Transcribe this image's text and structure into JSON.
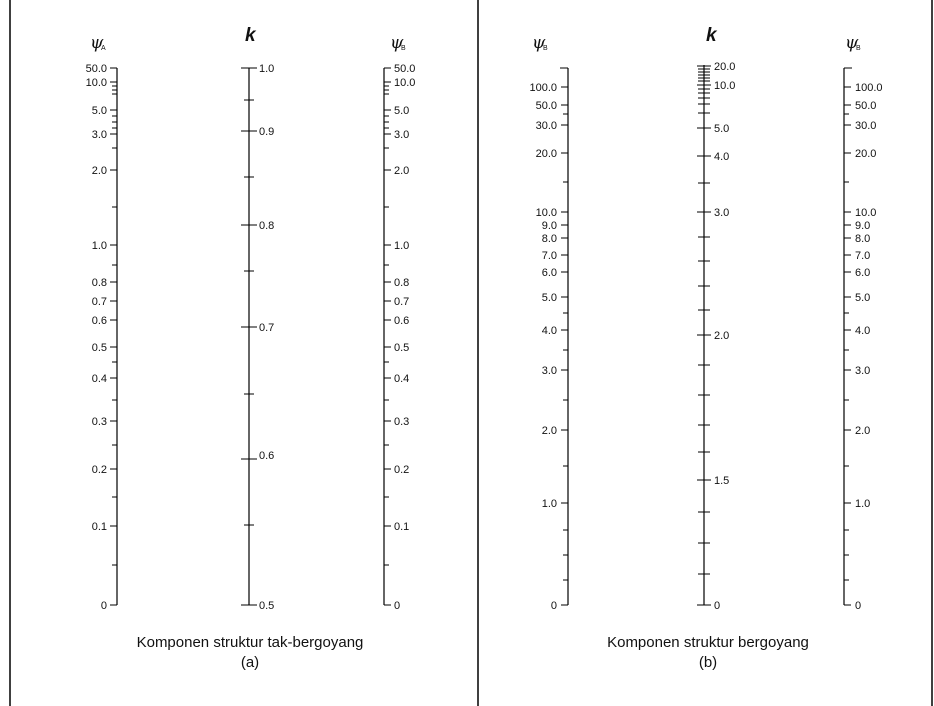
{
  "panel_a": {
    "caption": "Komponen struktur tak-bergoyang",
    "sub": "(a)",
    "scales": [
      {
        "symbol": "ψ",
        "subscript": "A",
        "labels": [
          "50.0",
          "10.0",
          "5.0",
          "3.0",
          "2.0",
          "1.0",
          "0.8",
          "0.7",
          "0.6",
          "0.5",
          "0.4",
          "0.3",
          "0.2",
          "0.1",
          "0"
        ]
      },
      {
        "symbol": "k",
        "subscript": "",
        "labels": [
          "1.0",
          "0.9",
          "0.8",
          "0.7",
          "0.6",
          "0.5"
        ]
      },
      {
        "symbol": "ψ",
        "subscript": "B",
        "labels": [
          "50.0",
          "10.0",
          "5.0",
          "3.0",
          "2.0",
          "1.0",
          "0.8",
          "0.7",
          "0.6",
          "0.5",
          "0.4",
          "0.3",
          "0.2",
          "0.1",
          "0"
        ]
      }
    ]
  },
  "panel_b": {
    "caption": "Komponen struktur bergoyang",
    "sub": "(b)",
    "scales": [
      {
        "symbol": "ψ",
        "subscript": "B",
        "labels": [
          "100.0",
          "50.0",
          "30.0",
          "20.0",
          "10.0",
          "9.0",
          "8.0",
          "7.0",
          "6.0",
          "5.0",
          "4.0",
          "3.0",
          "2.0",
          "1.0",
          "0"
        ]
      },
      {
        "symbol": "k",
        "subscript": "",
        "labels": [
          "20.0",
          "10.0",
          "5.0",
          "4.0",
          "3.0",
          "2.0",
          "1.5",
          "0"
        ]
      },
      {
        "symbol": "ψ",
        "subscript": "B",
        "labels": [
          "100.0",
          "50.0",
          "30.0",
          "20.0",
          "10.0",
          "9.0",
          "8.0",
          "7.0",
          "6.0",
          "5.0",
          "4.0",
          "3.0",
          "2.0",
          "1.0",
          "0"
        ]
      }
    ]
  }
}
